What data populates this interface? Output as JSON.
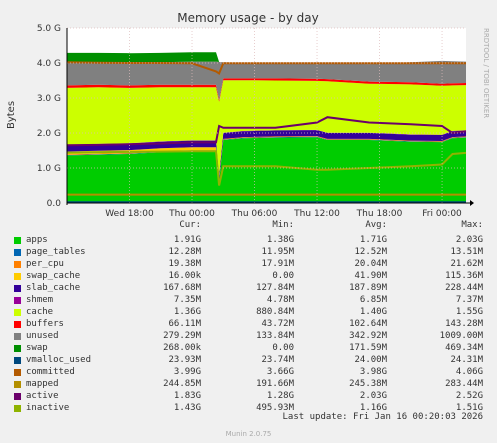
{
  "chart_data": {
    "type": "area",
    "title": "Memory usage - by day",
    "ylabel": "Bytes",
    "side_label": "RRDTOOL / TOBI OETIKER",
    "ylim": [
      0,
      5
    ],
    "yticks": [
      {
        "v": 0,
        "label": "0.0"
      },
      {
        "v": 1,
        "label": "1.0 G"
      },
      {
        "v": 2,
        "label": "2.0 G"
      },
      {
        "v": 3,
        "label": "3.0 G"
      },
      {
        "v": 4,
        "label": "4.0 G"
      },
      {
        "v": 5,
        "label": "5.0 G"
      }
    ],
    "xlim": [
      -9,
      29.3
    ],
    "xticks": [
      {
        "v": -3,
        "label": "Wed 18:00"
      },
      {
        "v": 3,
        "label": "Thu 00:00"
      },
      {
        "v": 9,
        "label": "Thu 06:00"
      },
      {
        "v": 15,
        "label": "Thu 12:00"
      },
      {
        "v": 21,
        "label": "Thu 18:00"
      },
      {
        "v": 27,
        "label": "Fri 00:00"
      }
    ],
    "x": [
      -9,
      -6,
      -3,
      0,
      3,
      5.3,
      5.6,
      6,
      8,
      11,
      15,
      16,
      20,
      24,
      27,
      28,
      29.3
    ],
    "series": [
      {
        "name": "apps",
        "color": "#00cc00",
        "values": [
          1.36,
          1.38,
          1.4,
          1.45,
          1.48,
          1.48,
          0.6,
          1.8,
          1.85,
          1.87,
          1.88,
          1.8,
          1.8,
          1.75,
          1.74,
          1.85,
          1.87
        ]
      },
      {
        "name": "page_tables",
        "color": "#0066b3",
        "values": [
          0.012,
          0.012,
          0.012,
          0.012,
          0.012,
          0.012,
          0.012,
          0.012,
          0.012,
          0.012,
          0.012,
          0.012,
          0.012,
          0.012,
          0.012,
          0.012,
          0.012
        ]
      },
      {
        "name": "per_cpu",
        "color": "#ff8000",
        "values": [
          0.02,
          0.02,
          0.02,
          0.02,
          0.02,
          0.02,
          0.02,
          0.02,
          0.02,
          0.02,
          0.02,
          0.02,
          0.02,
          0.02,
          0.02,
          0.02,
          0.02
        ]
      },
      {
        "name": "swap_cache",
        "color": "#ffcc00",
        "values": [
          0.08,
          0.08,
          0.08,
          0.08,
          0.08,
          0.08,
          0.0,
          0.0,
          0.0,
          0.0,
          0.0,
          0.0,
          0.0,
          0.0,
          0.0,
          0.0,
          0.0
        ]
      },
      {
        "name": "slab_cache",
        "color": "#330099",
        "values": [
          0.19,
          0.19,
          0.19,
          0.19,
          0.19,
          0.19,
          0.15,
          0.17,
          0.17,
          0.17,
          0.17,
          0.17,
          0.17,
          0.17,
          0.17,
          0.17,
          0.17
        ]
      },
      {
        "name": "shmem",
        "color": "#990099",
        "values": [
          0.007,
          0.007,
          0.007,
          0.007,
          0.007,
          0.007,
          0.007,
          0.007,
          0.007,
          0.007,
          0.007,
          0.007,
          0.007,
          0.007,
          0.007,
          0.007,
          0.007
        ]
      },
      {
        "name": "cache",
        "color": "#ccff00",
        "values": [
          1.62,
          1.62,
          1.58,
          1.55,
          1.52,
          1.52,
          2.1,
          1.5,
          1.45,
          1.42,
          1.4,
          1.47,
          1.4,
          1.43,
          1.4,
          1.3,
          1.29
        ]
      },
      {
        "name": "buffers",
        "color": "#ff0000",
        "values": [
          0.07,
          0.07,
          0.07,
          0.07,
          0.07,
          0.07,
          0.05,
          0.05,
          0.05,
          0.06,
          0.06,
          0.06,
          0.06,
          0.06,
          0.06,
          0.06,
          0.06
        ]
      },
      {
        "name": "unused",
        "color": "#808080",
        "values": [
          0.66,
          0.64,
          0.65,
          0.64,
          0.66,
          0.66,
          1.09,
          0.46,
          0.44,
          0.43,
          0.45,
          0.45,
          0.5,
          0.57,
          0.65,
          0.63,
          0.61
        ]
      },
      {
        "name": "swap",
        "color": "#008f00",
        "values": [
          0.27,
          0.27,
          0.27,
          0.27,
          0.27,
          0.27,
          0.0,
          0.0,
          0.0,
          0.0,
          0.0,
          0.0,
          0.0,
          0.0,
          0.0,
          0.0,
          0.0
        ]
      }
    ],
    "line_series": [
      {
        "name": "vmalloc_used",
        "color": "#00487d",
        "values": [
          0.024,
          0.024,
          0.024,
          0.024,
          0.024,
          0.024,
          0.024,
          0.024,
          0.024,
          0.024,
          0.024,
          0.024,
          0.024,
          0.024,
          0.024,
          0.024,
          0.024
        ]
      },
      {
        "name": "committed",
        "color": "#b35a00",
        "values": [
          4.02,
          4.01,
          4.0,
          4.0,
          3.99,
          3.76,
          3.7,
          3.99,
          3.99,
          3.99,
          3.99,
          3.99,
          3.99,
          3.99,
          3.99,
          3.99,
          3.99
        ]
      },
      {
        "name": "mapped",
        "color": "#b38f00",
        "values": [
          0.24,
          0.24,
          0.24,
          0.24,
          0.24,
          0.24,
          0.24,
          0.24,
          0.24,
          0.24,
          0.24,
          0.24,
          0.24,
          0.24,
          0.24,
          0.24,
          0.24
        ]
      },
      {
        "name": "active",
        "color": "#6b006b",
        "values": [
          1.65,
          1.66,
          1.68,
          1.7,
          1.73,
          1.73,
          2.2,
          2.15,
          2.15,
          2.15,
          2.3,
          2.45,
          2.3,
          2.25,
          2.2,
          2.0,
          2.05
        ]
      },
      {
        "name": "inactive",
        "color": "#8fb300",
        "values": [
          1.44,
          1.45,
          1.46,
          1.47,
          1.48,
          1.48,
          0.5,
          1.05,
          1.05,
          1.05,
          0.95,
          0.95,
          1.0,
          1.05,
          1.1,
          1.4,
          1.43
        ]
      }
    ]
  },
  "legend": {
    "headers": {
      "cur": "Cur:",
      "min": "Min:",
      "avg": "Avg:",
      "max": "Max:"
    },
    "rows": [
      {
        "name": "apps",
        "color": "#00cc00",
        "cur": "1.91G",
        "min": "1.38G",
        "avg": "1.71G",
        "max": "2.03G"
      },
      {
        "name": "page_tables",
        "color": "#0066b3",
        "cur": "12.28M",
        "min": "11.95M",
        "avg": "12.52M",
        "max": "13.51M"
      },
      {
        "name": "per_cpu",
        "color": "#ff8000",
        "cur": "19.38M",
        "min": "17.91M",
        "avg": "20.04M",
        "max": "21.62M"
      },
      {
        "name": "swap_cache",
        "color": "#ffcc00",
        "cur": "16.00k",
        "min": "0.00",
        "avg": "41.90M",
        "max": "115.36M"
      },
      {
        "name": "slab_cache",
        "color": "#330099",
        "cur": "167.68M",
        "min": "127.84M",
        "avg": "187.89M",
        "max": "228.44M"
      },
      {
        "name": "shmem",
        "color": "#990099",
        "cur": "7.35M",
        "min": "4.78M",
        "avg": "6.85M",
        "max": "7.37M"
      },
      {
        "name": "cache",
        "color": "#ccff00",
        "cur": "1.36G",
        "min": "880.84M",
        "avg": "1.40G",
        "max": "1.55G"
      },
      {
        "name": "buffers",
        "color": "#ff0000",
        "cur": "66.11M",
        "min": "43.72M",
        "avg": "102.64M",
        "max": "143.28M"
      },
      {
        "name": "unused",
        "color": "#808080",
        "cur": "279.29M",
        "min": "133.84M",
        "avg": "342.92M",
        "max": "1009.00M"
      },
      {
        "name": "swap",
        "color": "#008f00",
        "cur": "268.00k",
        "min": "0.00",
        "avg": "171.59M",
        "max": "469.34M"
      },
      {
        "name": "vmalloc_used",
        "color": "#00487d",
        "cur": "23.93M",
        "min": "23.74M",
        "avg": "24.00M",
        "max": "24.31M"
      },
      {
        "name": "committed",
        "color": "#b35a00",
        "cur": "3.99G",
        "min": "3.66G",
        "avg": "3.98G",
        "max": "4.06G"
      },
      {
        "name": "mapped",
        "color": "#b38f00",
        "cur": "244.85M",
        "min": "191.66M",
        "avg": "245.38M",
        "max": "283.44M"
      },
      {
        "name": "active",
        "color": "#6b006b",
        "cur": "1.83G",
        "min": "1.28G",
        "avg": "2.03G",
        "max": "2.52G"
      },
      {
        "name": "inactive",
        "color": "#8fb300",
        "cur": "1.43G",
        "min": "495.93M",
        "avg": "1.16G",
        "max": "1.51G"
      }
    ]
  },
  "last_update": "Last update: Fri Jan 16 00:20:03 2026",
  "footer": "Munin 2.0.75"
}
